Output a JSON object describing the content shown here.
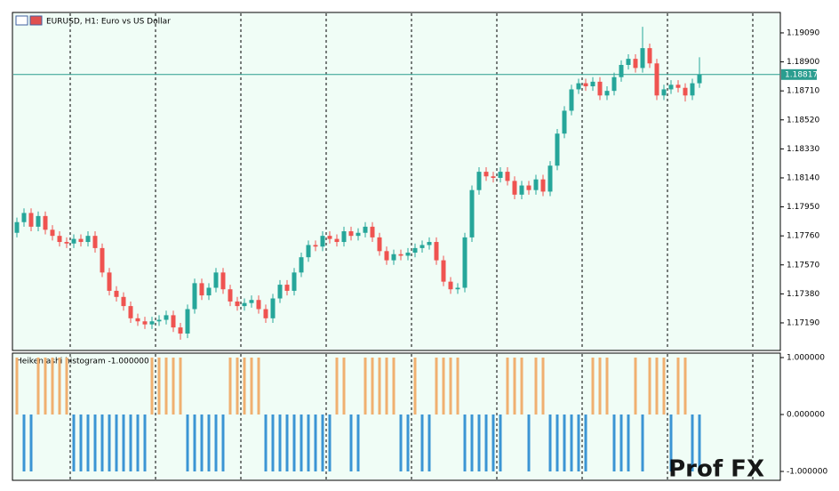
{
  "chart_data": [
    {
      "type": "candlestick",
      "title": "EURUSD, H1:  Euro vs US Dollar",
      "up_color": "#26a69a",
      "down_color": "#ef5350",
      "ylim": [
        1.17015,
        1.19218
      ],
      "yticks": [
        {
          "value": 1.1909,
          "label": "1.19090"
        },
        {
          "value": 1.189,
          "label": "1.18900"
        },
        {
          "value": 1.1871,
          "label": "1.18710"
        },
        {
          "value": 1.1852,
          "label": "1.18520"
        },
        {
          "value": 1.1833,
          "label": "1.18330"
        },
        {
          "value": 1.1814,
          "label": "1.18140"
        },
        {
          "value": 1.1795,
          "label": "1.17950"
        },
        {
          "value": 1.1776,
          "label": "1.17760"
        },
        {
          "value": 1.1757,
          "label": "1.17570"
        },
        {
          "value": 1.1738,
          "label": "1.17380"
        },
        {
          "value": 1.1719,
          "label": "1.17190"
        }
      ],
      "current_price": 1.18817,
      "current_price_color": "#2a9d8f",
      "ohlc": [
        [
          1.1778,
          1.1788,
          1.1775,
          1.1785
        ],
        [
          1.1785,
          1.1794,
          1.1782,
          1.1791
        ],
        [
          1.1791,
          1.1794,
          1.1779,
          1.1782
        ],
        [
          1.1782,
          1.1792,
          1.1779,
          1.1789
        ],
        [
          1.1789,
          1.1792,
          1.1777,
          1.178
        ],
        [
          1.178,
          1.1783,
          1.1773,
          1.1776
        ],
        [
          1.1776,
          1.1779,
          1.1769,
          1.1772
        ],
        [
          1.1772,
          1.1775,
          1.1768,
          1.1771
        ],
        [
          1.1771,
          1.1777,
          1.1768,
          1.1774
        ],
        [
          1.1774,
          1.1777,
          1.1769,
          1.1772
        ],
        [
          1.1772,
          1.1779,
          1.1769,
          1.1776
        ],
        [
          1.1776,
          1.1779,
          1.1765,
          1.1768
        ],
        [
          1.1768,
          1.1771,
          1.1749,
          1.1752
        ],
        [
          1.1752,
          1.1755,
          1.1737,
          1.174
        ],
        [
          1.174,
          1.1743,
          1.1733,
          1.1736
        ],
        [
          1.1736,
          1.1739,
          1.1727,
          1.173
        ],
        [
          1.173,
          1.1733,
          1.1719,
          1.1722
        ],
        [
          1.1722,
          1.1725,
          1.1717,
          1.172
        ],
        [
          1.172,
          1.1723,
          1.1715,
          1.1718
        ],
        [
          1.1718,
          1.1723,
          1.1715,
          1.172
        ],
        [
          1.172,
          1.1724,
          1.1717,
          1.1721
        ],
        [
          1.1721,
          1.1727,
          1.1718,
          1.1724
        ],
        [
          1.1724,
          1.1727,
          1.1713,
          1.1716
        ],
        [
          1.1716,
          1.1719,
          1.1708,
          1.1712
        ],
        [
          1.1712,
          1.1731,
          1.1709,
          1.1728
        ],
        [
          1.1728,
          1.1748,
          1.1725,
          1.1745
        ],
        [
          1.1745,
          1.1748,
          1.1734,
          1.1737
        ],
        [
          1.1737,
          1.1745,
          1.1734,
          1.1742
        ],
        [
          1.1742,
          1.1755,
          1.1739,
          1.1752
        ],
        [
          1.1752,
          1.1755,
          1.1738,
          1.1741
        ],
        [
          1.1741,
          1.1744,
          1.173,
          1.1733
        ],
        [
          1.1733,
          1.1736,
          1.1727,
          1.173
        ],
        [
          1.173,
          1.1735,
          1.1727,
          1.1732
        ],
        [
          1.1732,
          1.1737,
          1.1729,
          1.1734
        ],
        [
          1.1734,
          1.1737,
          1.1725,
          1.1728
        ],
        [
          1.1728,
          1.1731,
          1.1719,
          1.1722
        ],
        [
          1.1722,
          1.1738,
          1.1719,
          1.1735
        ],
        [
          1.1735,
          1.1747,
          1.1732,
          1.1744
        ],
        [
          1.1744,
          1.1747,
          1.1737,
          1.174
        ],
        [
          1.174,
          1.1755,
          1.1737,
          1.1752
        ],
        [
          1.1752,
          1.1765,
          1.1749,
          1.1762
        ],
        [
          1.1762,
          1.1773,
          1.1759,
          1.177
        ],
        [
          1.177,
          1.1773,
          1.1766,
          1.1769
        ],
        [
          1.1769,
          1.1779,
          1.1766,
          1.1776
        ],
        [
          1.1776,
          1.1779,
          1.1771,
          1.1774
        ],
        [
          1.1774,
          1.1777,
          1.1769,
          1.1772
        ],
        [
          1.1772,
          1.1782,
          1.1769,
          1.1779
        ],
        [
          1.1779,
          1.1782,
          1.1773,
          1.1776
        ],
        [
          1.1776,
          1.1781,
          1.1773,
          1.1778
        ],
        [
          1.1778,
          1.1785,
          1.1775,
          1.1782
        ],
        [
          1.1782,
          1.1785,
          1.1772,
          1.1775
        ],
        [
          1.1775,
          1.1778,
          1.1763,
          1.1766
        ],
        [
          1.1766,
          1.1769,
          1.1757,
          1.176
        ],
        [
          1.176,
          1.1767,
          1.1757,
          1.1764
        ],
        [
          1.1764,
          1.1767,
          1.176,
          1.1763
        ],
        [
          1.1763,
          1.1768,
          1.176,
          1.1765
        ],
        [
          1.1765,
          1.1771,
          1.1762,
          1.1768
        ],
        [
          1.1768,
          1.1773,
          1.1765,
          1.177
        ],
        [
          1.177,
          1.1775,
          1.1767,
          1.1772
        ],
        [
          1.1772,
          1.1775,
          1.1757,
          1.176
        ],
        [
          1.176,
          1.1763,
          1.1743,
          1.1746
        ],
        [
          1.1746,
          1.1749,
          1.1738,
          1.1741
        ],
        [
          1.1741,
          1.1745,
          1.1738,
          1.1742
        ],
        [
          1.1742,
          1.1778,
          1.1739,
          1.1775
        ],
        [
          1.1775,
          1.1809,
          1.1772,
          1.1806
        ],
        [
          1.1806,
          1.1821,
          1.1803,
          1.1818
        ],
        [
          1.1818,
          1.1821,
          1.1812,
          1.1815
        ],
        [
          1.1815,
          1.1818,
          1.1811,
          1.1814
        ],
        [
          1.1814,
          1.1821,
          1.1811,
          1.1818
        ],
        [
          1.1818,
          1.1821,
          1.1809,
          1.1812
        ],
        [
          1.1812,
          1.1815,
          1.18,
          1.1803
        ],
        [
          1.1803,
          1.1812,
          1.18,
          1.1809
        ],
        [
          1.1809,
          1.1812,
          1.1803,
          1.1806
        ],
        [
          1.1806,
          1.1816,
          1.1803,
          1.1813
        ],
        [
          1.1813,
          1.1816,
          1.1802,
          1.1805
        ],
        [
          1.1805,
          1.1825,
          1.1802,
          1.1822
        ],
        [
          1.1822,
          1.1846,
          1.1819,
          1.1843
        ],
        [
          1.1843,
          1.1861,
          1.184,
          1.1858
        ],
        [
          1.1858,
          1.1875,
          1.1855,
          1.1872
        ],
        [
          1.1872,
          1.1879,
          1.1869,
          1.1876
        ],
        [
          1.1876,
          1.1879,
          1.1871,
          1.1874
        ],
        [
          1.1874,
          1.188,
          1.1871,
          1.1877
        ],
        [
          1.1877,
          1.188,
          1.1865,
          1.1868
        ],
        [
          1.1868,
          1.1874,
          1.1865,
          1.1871
        ],
        [
          1.1871,
          1.1883,
          1.1868,
          1.188
        ],
        [
          1.188,
          1.1891,
          1.1877,
          1.1888
        ],
        [
          1.1888,
          1.1895,
          1.1885,
          1.1892
        ],
        [
          1.1892,
          1.1895,
          1.1883,
          1.1886
        ],
        [
          1.1886,
          1.1913,
          1.1883,
          1.1899
        ],
        [
          1.1899,
          1.1902,
          1.1886,
          1.1889
        ],
        [
          1.1889,
          1.1892,
          1.1865,
          1.1868
        ],
        [
          1.1868,
          1.1875,
          1.1865,
          1.1872
        ],
        [
          1.1872,
          1.1878,
          1.1869,
          1.1875
        ],
        [
          1.1875,
          1.1878,
          1.187,
          1.1873
        ],
        [
          1.1873,
          1.1876,
          1.1864,
          1.1868
        ],
        [
          1.1868,
          1.1879,
          1.1865,
          1.1876
        ],
        [
          1.1876,
          1.1893,
          1.1873,
          1.18817
        ]
      ]
    },
    {
      "type": "bar",
      "title": "Heiken ashi histogram -1.000000",
      "up_color": "#f0b070",
      "down_color": "#3b95d4",
      "ylim": [
        -1.156,
        1.078
      ],
      "yticks": [
        {
          "value": 1,
          "label": "1.000000"
        },
        {
          "value": 0,
          "label": "0.000000"
        },
        {
          "value": -1,
          "label": "-1.000000"
        }
      ],
      "values": [
        1,
        -1,
        -1,
        1,
        1,
        1,
        1,
        1,
        -1,
        -1,
        -1,
        -1,
        -1,
        -1,
        -1,
        -1,
        -1,
        -1,
        -1,
        1,
        1,
        1,
        1,
        1,
        -1,
        -1,
        -1,
        -1,
        -1,
        -1,
        1,
        1,
        1,
        1,
        1,
        -1,
        -1,
        -1,
        -1,
        -1,
        -1,
        -1,
        -1,
        -1,
        -1,
        1,
        1,
        -1,
        -1,
        1,
        1,
        1,
        1,
        1,
        -1,
        -1,
        1,
        -1,
        -1,
        1,
        1,
        1,
        1,
        -1,
        -1,
        -1,
        -1,
        -1,
        -1,
        1,
        1,
        1,
        -1,
        1,
        1,
        -1,
        -1,
        -1,
        -1,
        -1,
        -1,
        1,
        1,
        1,
        -1,
        -1,
        -1,
        1,
        -1,
        1,
        1,
        1,
        -1,
        1,
        1,
        -1,
        -1
      ]
    },
    {
      "watermark": "Prof FX"
    }
  ]
}
